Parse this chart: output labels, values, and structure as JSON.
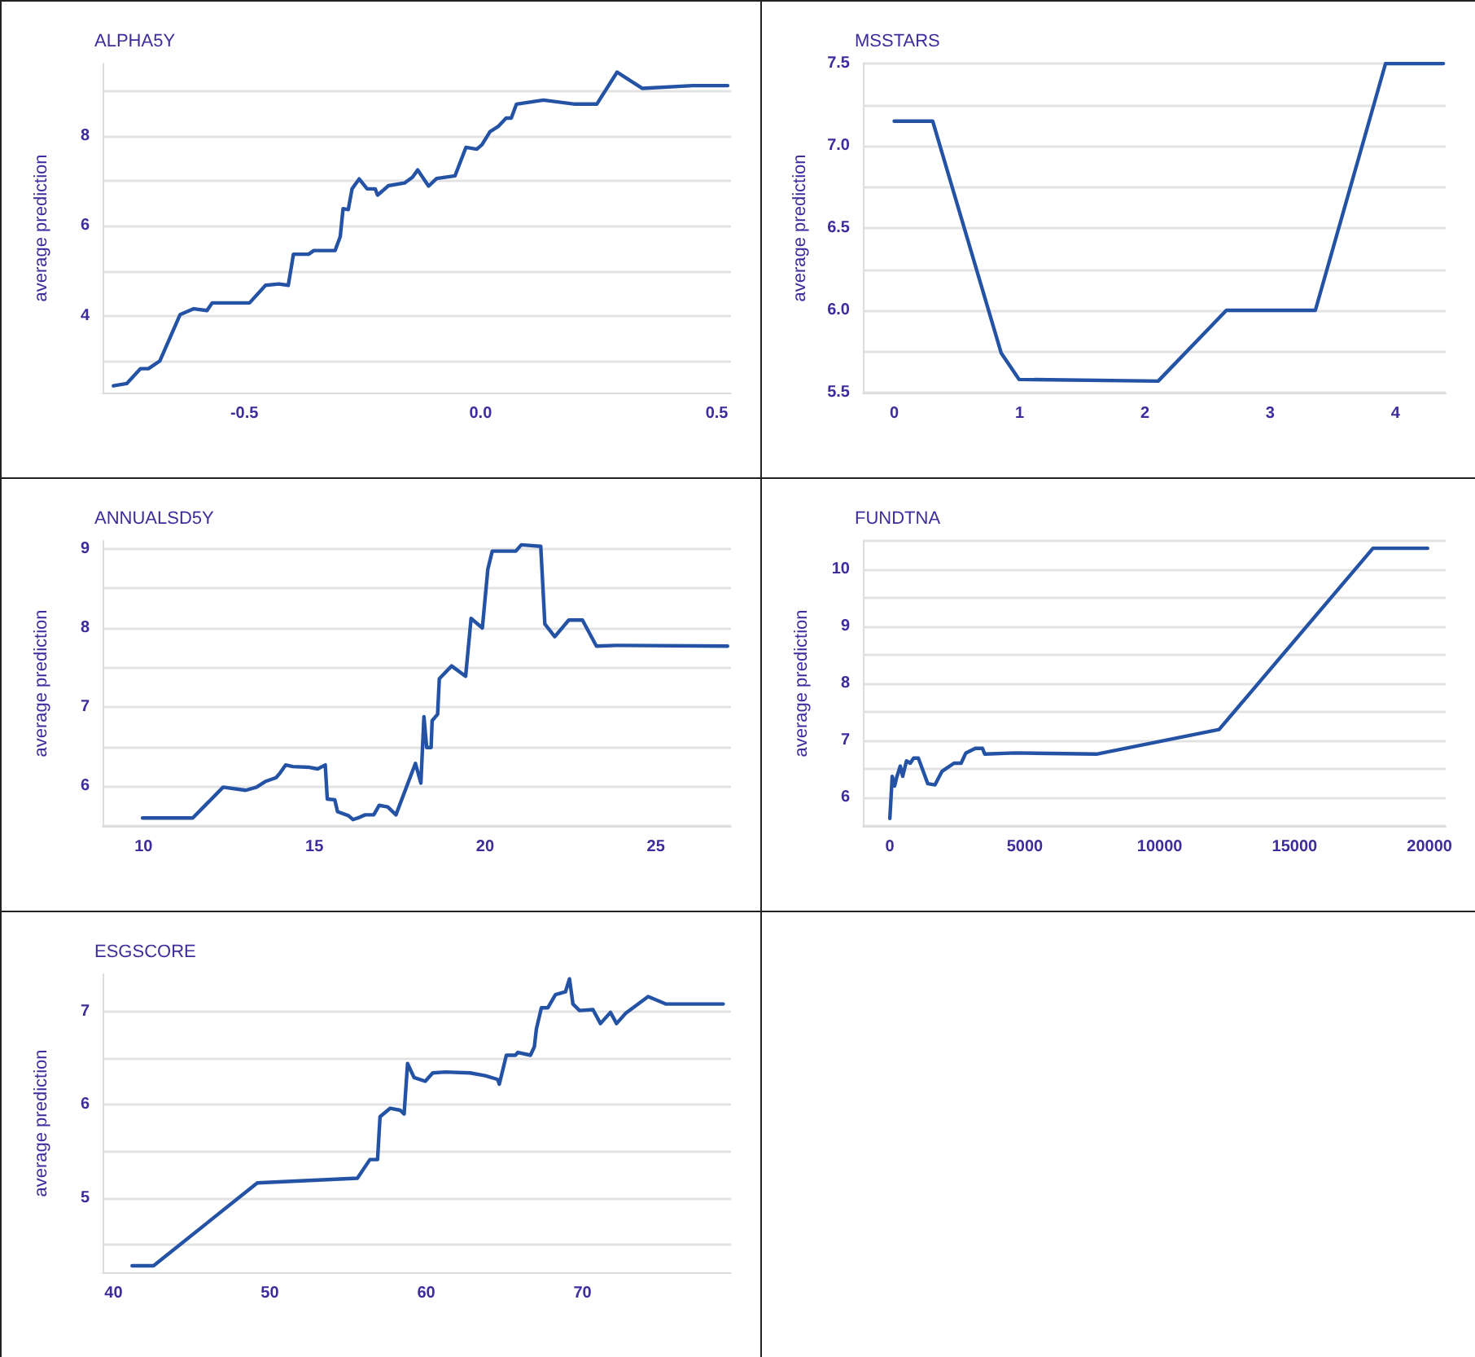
{
  "chart_data": [
    {
      "type": "line",
      "title": "ALPHA5Y",
      "ylabel": "average prediction",
      "color": "#2453a6",
      "grid": "y",
      "marker": "none",
      "x": [
        -0.777,
        -0.749,
        -0.72,
        -0.703,
        -0.679,
        -0.636,
        -0.607,
        -0.579,
        -0.568,
        -0.489,
        -0.455,
        -0.427,
        -0.407,
        -0.396,
        -0.364,
        -0.353,
        -0.308,
        -0.297,
        -0.291,
        -0.28,
        -0.272,
        -0.257,
        -0.24,
        -0.223,
        -0.218,
        -0.195,
        -0.161,
        -0.144,
        -0.133,
        -0.11,
        -0.093,
        -0.054,
        -0.031,
        -0.008,
        0.003,
        0.02,
        0.037,
        0.054,
        0.065,
        0.076,
        0.133,
        0.2,
        0.246,
        0.289,
        0.342,
        0.449,
        0.523
      ],
      "values": [
        2.45,
        2.5,
        2.83,
        2.83,
        3.0,
        4.03,
        4.16,
        4.12,
        4.29,
        4.29,
        4.68,
        4.71,
        4.68,
        5.37,
        5.37,
        5.45,
        5.45,
        5.76,
        6.38,
        6.36,
        6.82,
        7.04,
        6.82,
        6.82,
        6.68,
        6.89,
        6.95,
        7.08,
        7.24,
        6.88,
        7.05,
        7.11,
        7.74,
        7.7,
        7.8,
        8.09,
        8.2,
        8.39,
        8.39,
        8.7,
        8.79,
        8.7,
        8.7,
        9.41,
        9.05,
        9.11,
        9.11
      ],
      "xlim": [
        -0.8,
        0.53
      ],
      "xticks": [
        -0.5,
        {
          "value": 0,
          "label": "0.0"
        },
        0.5
      ],
      "ylim": [
        2.3,
        9.6
      ],
      "yticks": [
        {
          "value": 3,
          "label": null
        },
        4,
        {
          "value": 5,
          "label": null
        },
        6,
        {
          "value": 7,
          "label": null
        },
        8,
        {
          "value": 9,
          "label": null
        }
      ]
    },
    {
      "type": "line",
      "title": "MSSTARS",
      "ylabel": "average prediction",
      "color": "#2453a6",
      "grid": "y",
      "marker": "none",
      "x": [
        0,
        0.307,
        0.854,
        0.996,
        2.106,
        2.65,
        3.36,
        3.92,
        4.38
      ],
      "values": [
        7.15,
        7.15,
        5.74,
        5.58,
        5.57,
        6.0,
        6.0,
        7.5,
        7.5
      ],
      "xlim": [
        -0.25,
        4.4
      ],
      "xticks": [
        0,
        1,
        2,
        3,
        4
      ],
      "ylim": [
        5.5,
        7.5
      ],
      "yticks": [
        5.5,
        {
          "value": 5.75,
          "label": null
        },
        {
          "value": 6,
          "label": "6.0"
        },
        {
          "value": 6.25,
          "label": null
        },
        6.5,
        {
          "value": 6.75,
          "label": null
        },
        {
          "value": 7,
          "label": "7.0"
        },
        {
          "value": 7.25,
          "label": null
        },
        7.5
      ]
    },
    {
      "type": "line",
      "title": "ANNUALSD5Y",
      "ylabel": "average prediction",
      "color": "#2453a6",
      "grid": "y",
      "marker": "none",
      "x": [
        9.97,
        11.44,
        12.33,
        12.99,
        13.31,
        13.56,
        13.88,
        14.0,
        14.16,
        14.37,
        14.86,
        15.1,
        15.32,
        15.38,
        15.6,
        15.68,
        16.0,
        16.13,
        16.33,
        16.49,
        16.74,
        16.9,
        17.15,
        17.39,
        17.96,
        18.12,
        18.21,
        18.29,
        18.42,
        18.45,
        18.61,
        18.66,
        19.02,
        19.43,
        19.59,
        19.92,
        20.08,
        20.21,
        20.9,
        21.06,
        21.63,
        21.75,
        22.04,
        22.45,
        22.85,
        23.26,
        23.83,
        27.1
      ],
      "values": [
        5.6,
        5.6,
        5.99,
        5.95,
        5.99,
        6.06,
        6.11,
        6.17,
        6.27,
        6.25,
        6.24,
        6.22,
        6.27,
        5.84,
        5.83,
        5.68,
        5.63,
        5.58,
        5.61,
        5.64,
        5.64,
        5.76,
        5.74,
        5.64,
        6.29,
        6.04,
        6.88,
        6.49,
        6.49,
        6.83,
        6.91,
        7.36,
        7.52,
        7.39,
        8.12,
        8.0,
        8.74,
        8.97,
        8.97,
        9.05,
        9.03,
        8.05,
        7.89,
        8.1,
        8.1,
        7.77,
        7.78,
        7.77
      ],
      "xlim": [
        8.8,
        27.2
      ],
      "xticks": [
        10,
        15,
        20,
        25
      ],
      "ylim": [
        5.5,
        9.1
      ],
      "yticks": [
        {
          "value": 5.5,
          "label": null
        },
        6,
        {
          "value": 6.5,
          "label": null
        },
        7,
        {
          "value": 7.5,
          "label": null
        },
        8,
        {
          "value": 8.5,
          "label": null
        },
        9
      ]
    },
    {
      "type": "line",
      "title": "FUNDTNA",
      "ylabel": "average prediction",
      "color": "#2453a6",
      "grid": "y",
      "marker": "none",
      "x": [
        0,
        88,
        176,
        264,
        387,
        475,
        616,
        757,
        880,
        1056,
        1408,
        1673,
        1937,
        2377,
        2641,
        2817,
        3169,
        3433,
        3521,
        4665,
        7658,
        12201,
        17905,
        19930
      ],
      "values": [
        5.63,
        6.37,
        6.2,
        6.37,
        6.55,
        6.37,
        6.64,
        6.6,
        6.69,
        6.69,
        6.24,
        6.22,
        6.46,
        6.6,
        6.6,
        6.78,
        6.86,
        6.86,
        6.76,
        6.78,
        6.76,
        7.19,
        10.37,
        10.37
      ],
      "xlim": [
        -1000,
        20600
      ],
      "xticks": [
        0,
        5000,
        10000,
        15000,
        20000
      ],
      "ylim": [
        5.5,
        10.5
      ],
      "yticks": [
        {
          "value": 5.5,
          "label": null
        },
        6,
        {
          "value": 6.5,
          "label": null
        },
        7,
        {
          "value": 7.5,
          "label": null
        },
        8,
        {
          "value": 8.5,
          "label": null
        },
        9,
        {
          "value": 9.5,
          "label": null
        },
        10,
        {
          "value": 10.5,
          "label": null
        }
      ]
    },
    {
      "type": "line",
      "title": "ESGSCORE",
      "ylabel": "average prediction",
      "color": "#2453a6",
      "grid": "y",
      "marker": "none",
      "x": [
        41.19,
        42.56,
        49.2,
        55.6,
        56.4,
        56.89,
        57.05,
        57.69,
        58.33,
        58.59,
        58.81,
        59.23,
        59.94,
        60.42,
        61.22,
        62.82,
        63.78,
        64.58,
        64.68,
        65.13,
        65.71,
        65.87,
        66.67,
        66.92,
        67.05,
        67.37,
        67.79,
        68.27,
        68.91,
        69.17,
        69.39,
        69.81,
        70.67,
        71.15,
        71.79,
        72.18,
        72.76,
        74.2,
        75.32,
        79.0
      ],
      "values": [
        4.27,
        4.27,
        5.16,
        5.21,
        5.41,
        5.41,
        5.87,
        5.96,
        5.94,
        5.9,
        6.44,
        6.29,
        6.25,
        6.34,
        6.35,
        6.34,
        6.31,
        6.27,
        6.22,
        6.53,
        6.53,
        6.56,
        6.53,
        6.62,
        6.81,
        7.04,
        7.04,
        7.18,
        7.21,
        7.35,
        7.08,
        7.01,
        7.02,
        6.87,
        6.99,
        6.87,
        6.98,
        7.16,
        7.08,
        7.08
      ],
      "xlim": [
        39.3,
        79.5
      ],
      "xticks": [
        40,
        50,
        60,
        70
      ],
      "ylim": [
        4.2,
        7.4
      ],
      "yticks": [
        {
          "value": 4.5,
          "label": null
        },
        5,
        {
          "value": 5.5,
          "label": null
        },
        6,
        {
          "value": 6.5,
          "label": null
        },
        7
      ]
    }
  ]
}
